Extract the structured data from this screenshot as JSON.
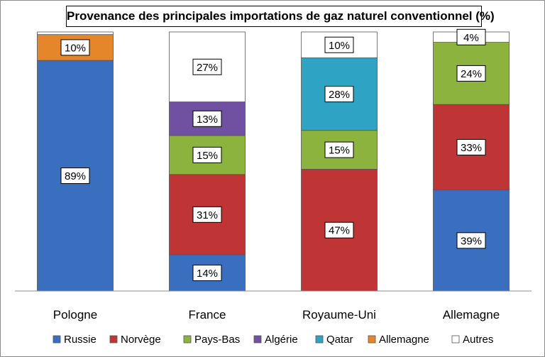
{
  "chart_data": {
    "type": "bar",
    "stacked": true,
    "title": "Provenance des principales importations de gaz naturel conventionnel (%)",
    "xlabel": "",
    "ylabel": "",
    "ylim": [
      0,
      100
    ],
    "grid": false,
    "legend": "bottom",
    "categories": [
      "Pologne",
      "France",
      "Royaume-Uni",
      "Allemagne"
    ],
    "series": [
      {
        "name": "Russie",
        "color": "#3a6fbf",
        "values": [
          89,
          14,
          0,
          39
        ]
      },
      {
        "name": "Norvège",
        "color": "#bf3434",
        "values": [
          0,
          31,
          47,
          33
        ]
      },
      {
        "name": "Pays-Bas",
        "color": "#8db33f",
        "values": [
          0,
          15,
          15,
          24
        ]
      },
      {
        "name": "Algérie",
        "color": "#7050a0",
        "values": [
          0,
          13,
          0,
          0
        ]
      },
      {
        "name": "Qatar",
        "color": "#2ea3c4",
        "values": [
          0,
          0,
          28,
          0
        ]
      },
      {
        "name": "Allemagne",
        "color": "#e5862a",
        "values": [
          10,
          0,
          0,
          0
        ]
      },
      {
        "name": "Autres",
        "color": "#ffffff",
        "values": [
          1,
          27,
          10,
          4
        ]
      }
    ],
    "data_labels": [
      [
        "89%",
        "",
        "",
        "",
        "",
        "10%",
        ""
      ],
      [
        "14%",
        "31%",
        "15%",
        "13%",
        "",
        "",
        "27%"
      ],
      [
        "",
        "47%",
        "15%",
        "",
        "28%",
        "",
        "10%"
      ],
      [
        "39%",
        "33%",
        "24%",
        "",
        "",
        "",
        "4%"
      ]
    ]
  }
}
